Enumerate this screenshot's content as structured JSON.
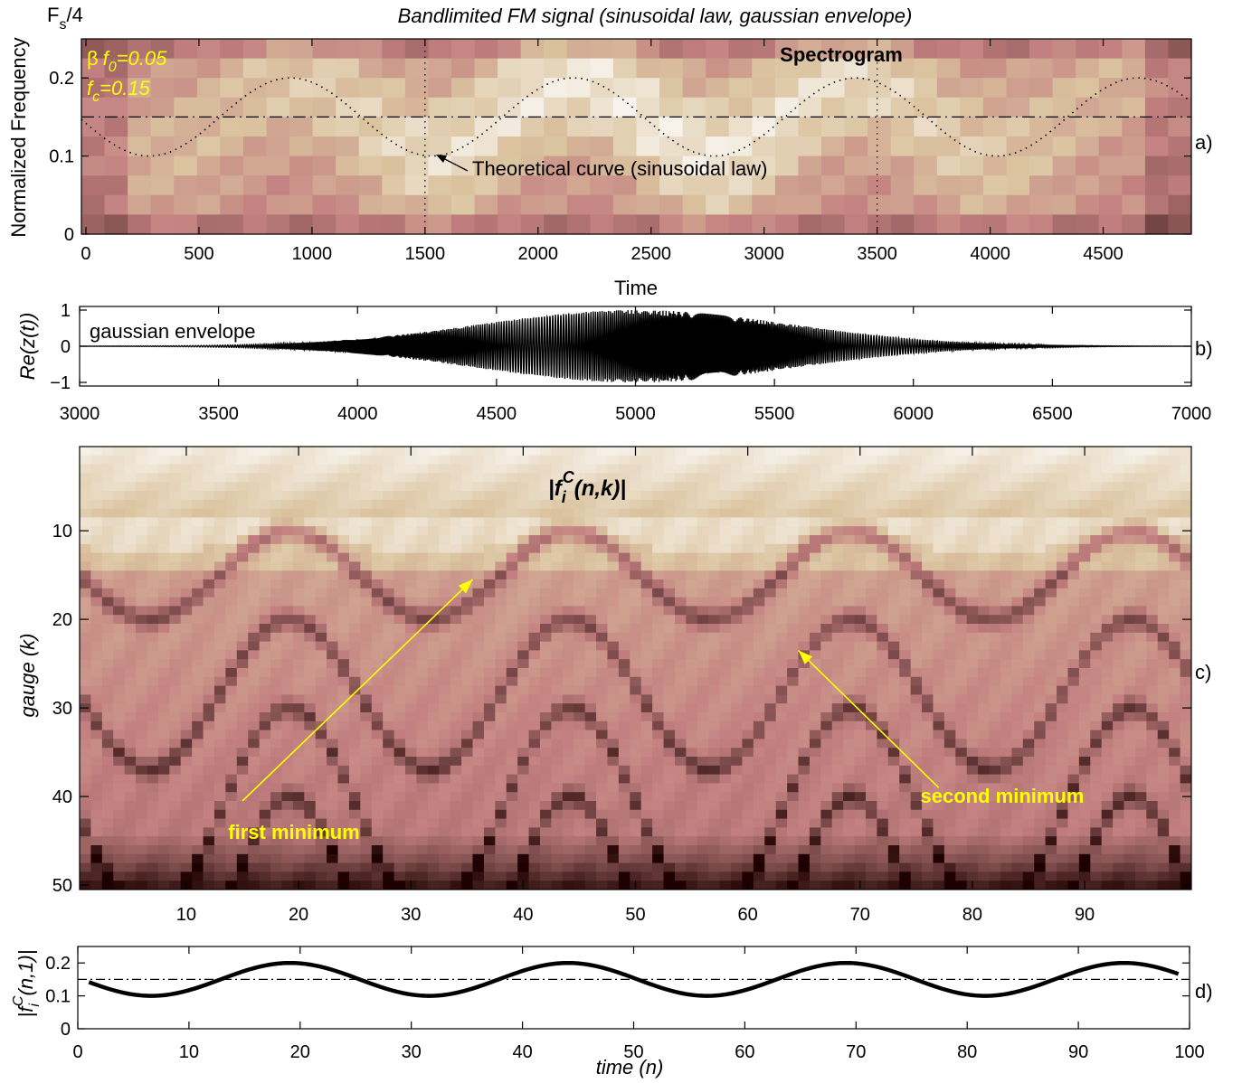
{
  "title": "Bandlimited FM signal (sinusoidal law, gaussian envelope)",
  "chart_data": [
    {
      "id": "a",
      "type": "heatmap",
      "panel_label": "a)",
      "inner_title": "Spectrogram",
      "ylabel": "Normalized Frequency",
      "ytop_label": "F",
      "ytop_sub": "s",
      "ytop_tail": "/4",
      "xlabel": "Time",
      "xlim": [
        -20,
        4890
      ],
      "ylim": [
        0,
        0.25
      ],
      "xticks": [
        0,
        500,
        1000,
        1500,
        2000,
        2500,
        3000,
        3500,
        4000,
        4500
      ],
      "yticks": [
        0,
        0.1,
        0.2
      ],
      "ytick_labels": [
        "0",
        "0.1",
        "0.2"
      ],
      "params": {
        "beta": "β",
        "f0_main": "f",
        "f0_sub": "0",
        "f0_val": "=0.05",
        "fc_main": "f",
        "fc_sub": "c",
        "fc_val": "=0.15"
      },
      "annotation": "Theoretical curve (sinusoidal law)",
      "theoretical_curve": {
        "center": 0.15,
        "amplitude": 0.05,
        "period": 1250,
        "min_at": 280
      },
      "reference_line": 0.15,
      "vlines": [
        1500,
        3500
      ]
    },
    {
      "id": "b",
      "type": "line",
      "panel_label": "b)",
      "ylabel": "Re(z(t))",
      "annotation": "gaussian envelope",
      "xlim": [
        3000,
        7000
      ],
      "ylim": [
        -1.1,
        1.1
      ],
      "xticks": [
        3000,
        3500,
        4000,
        4500,
        5000,
        5500,
        6000,
        6500,
        7000
      ],
      "yticks": [
        -1,
        0,
        1
      ],
      "ytick_labels": [
        "−1",
        "0",
        "1"
      ],
      "envelope": {
        "center": 5000,
        "sigma": 560,
        "peak": 1.0
      }
    },
    {
      "id": "c",
      "type": "heatmap",
      "panel_label": "c)",
      "title_main": "|f",
      "title_sub": "i",
      "title_sup": "C",
      "title_tail": "(n,k)|",
      "ylabel": "gauge (k)",
      "xlim": [
        0.5,
        99.5
      ],
      "ylim": [
        0.5,
        50.5
      ],
      "xticks": [
        10,
        20,
        30,
        40,
        50,
        60,
        70,
        80,
        90
      ],
      "yticks": [
        10,
        20,
        30,
        40,
        50
      ],
      "minima_rows": [
        10,
        20,
        30,
        40
      ],
      "minima_bottom_offsets": [
        10,
        17,
        24,
        30
      ],
      "annotations": [
        {
          "text": "first minimum",
          "arrow_tip": [
            35.5,
            15.5
          ],
          "arrow_tail": [
            15,
            40.5
          ]
        },
        {
          "text": "second minimum",
          "arrow_tip": [
            64.5,
            23.5
          ],
          "arrow_tail": [
            77,
            39
          ]
        }
      ],
      "highlight_color": "#ffff00"
    },
    {
      "id": "d",
      "type": "line",
      "panel_label": "d)",
      "ylabel_main": "|f",
      "ylabel_sub": "i",
      "ylabel_sup": "C",
      "ylabel_tail": "(n,1)|",
      "xlabel": "time (n)",
      "xlim": [
        0,
        100
      ],
      "ylim": [
        0,
        0.25
      ],
      "xticks": [
        0,
        10,
        20,
        30,
        40,
        50,
        60,
        70,
        80,
        90,
        100
      ],
      "yticks": [
        0,
        0.1,
        0.2
      ],
      "ytick_labels": [
        "0",
        "0.1",
        "0.2"
      ],
      "series": [
        {
          "x": [
            1,
            6.6,
            19.2,
            31.7,
            44.2,
            56.7,
            69.2,
            81.7,
            94.2,
            99
          ],
          "y": [
            0.143,
            0.1,
            0.2,
            0.1,
            0.2,
            0.1,
            0.2,
            0.1,
            0.2,
            0.165
          ]
        }
      ],
      "reference_line": 0.15
    }
  ]
}
